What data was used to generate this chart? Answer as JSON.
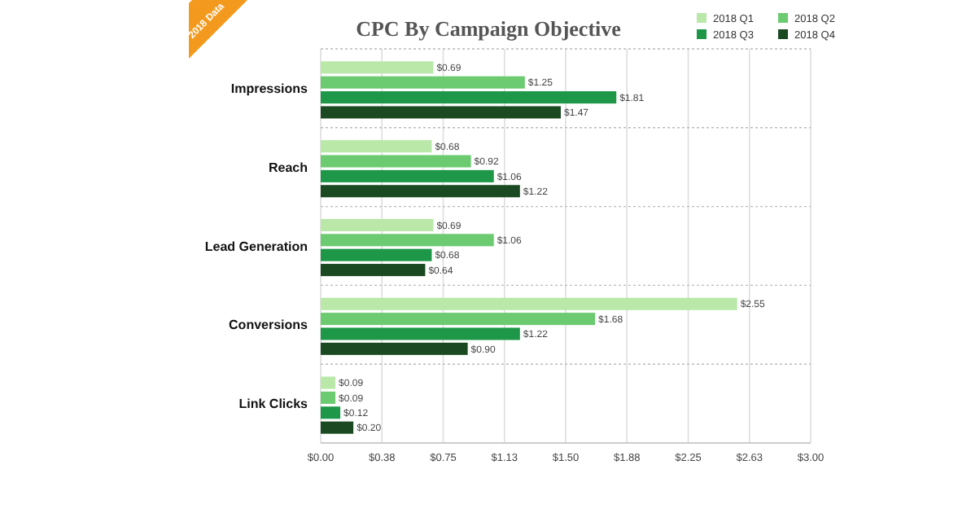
{
  "chart_data": {
    "type": "bar",
    "orientation": "horizontal",
    "title": "CPC By Campaign Objective",
    "annotations": [
      "2018 Data"
    ],
    "categories": [
      "Impressions",
      "Reach",
      "Lead Generation",
      "Conversions",
      "Link Clicks"
    ],
    "series": [
      {
        "name": "2018 Q1",
        "color": "#b9e8a9",
        "values": [
          0.69,
          0.68,
          0.69,
          2.55,
          0.09
        ],
        "value_labels": [
          "$0.69",
          "$0.68",
          "$0.69",
          "$2.55",
          "$0.09"
        ]
      },
      {
        "name": "2018 Q2",
        "color": "#6ccb70",
        "values": [
          1.25,
          0.92,
          1.06,
          1.68,
          0.09
        ],
        "value_labels": [
          "$1.25",
          "$0.92",
          "$1.06",
          "$1.68",
          "$0.09"
        ]
      },
      {
        "name": "2018 Q3",
        "color": "#1e9848",
        "values": [
          1.81,
          1.06,
          0.68,
          1.22,
          0.12
        ],
        "value_labels": [
          "$1.81",
          "$1.06",
          "$0.68",
          "$1.22",
          "$0.12"
        ]
      },
      {
        "name": "2018 Q4",
        "color": "#1b4a22",
        "values": [
          1.47,
          1.22,
          0.64,
          0.9,
          0.2
        ],
        "value_labels": [
          "$1.47",
          "$1.22",
          "$0.64",
          "$0.90",
          "$0.20"
        ]
      }
    ],
    "xlim": [
      0,
      3
    ],
    "xticks": [
      {
        "value": 0,
        "label": "$0.00"
      },
      {
        "value": 0.375,
        "label": "$0.38"
      },
      {
        "value": 0.75,
        "label": "$0.75"
      },
      {
        "value": 1.125,
        "label": "$1.13"
      },
      {
        "value": 1.5,
        "label": "$1.50"
      },
      {
        "value": 1.875,
        "label": "$1.88"
      },
      {
        "value": 2.25,
        "label": "$2.25"
      },
      {
        "value": 2.625,
        "label": "$2.63"
      },
      {
        "value": 3,
        "label": "$3.00"
      }
    ],
    "grid": "x",
    "legend": "top right"
  }
}
